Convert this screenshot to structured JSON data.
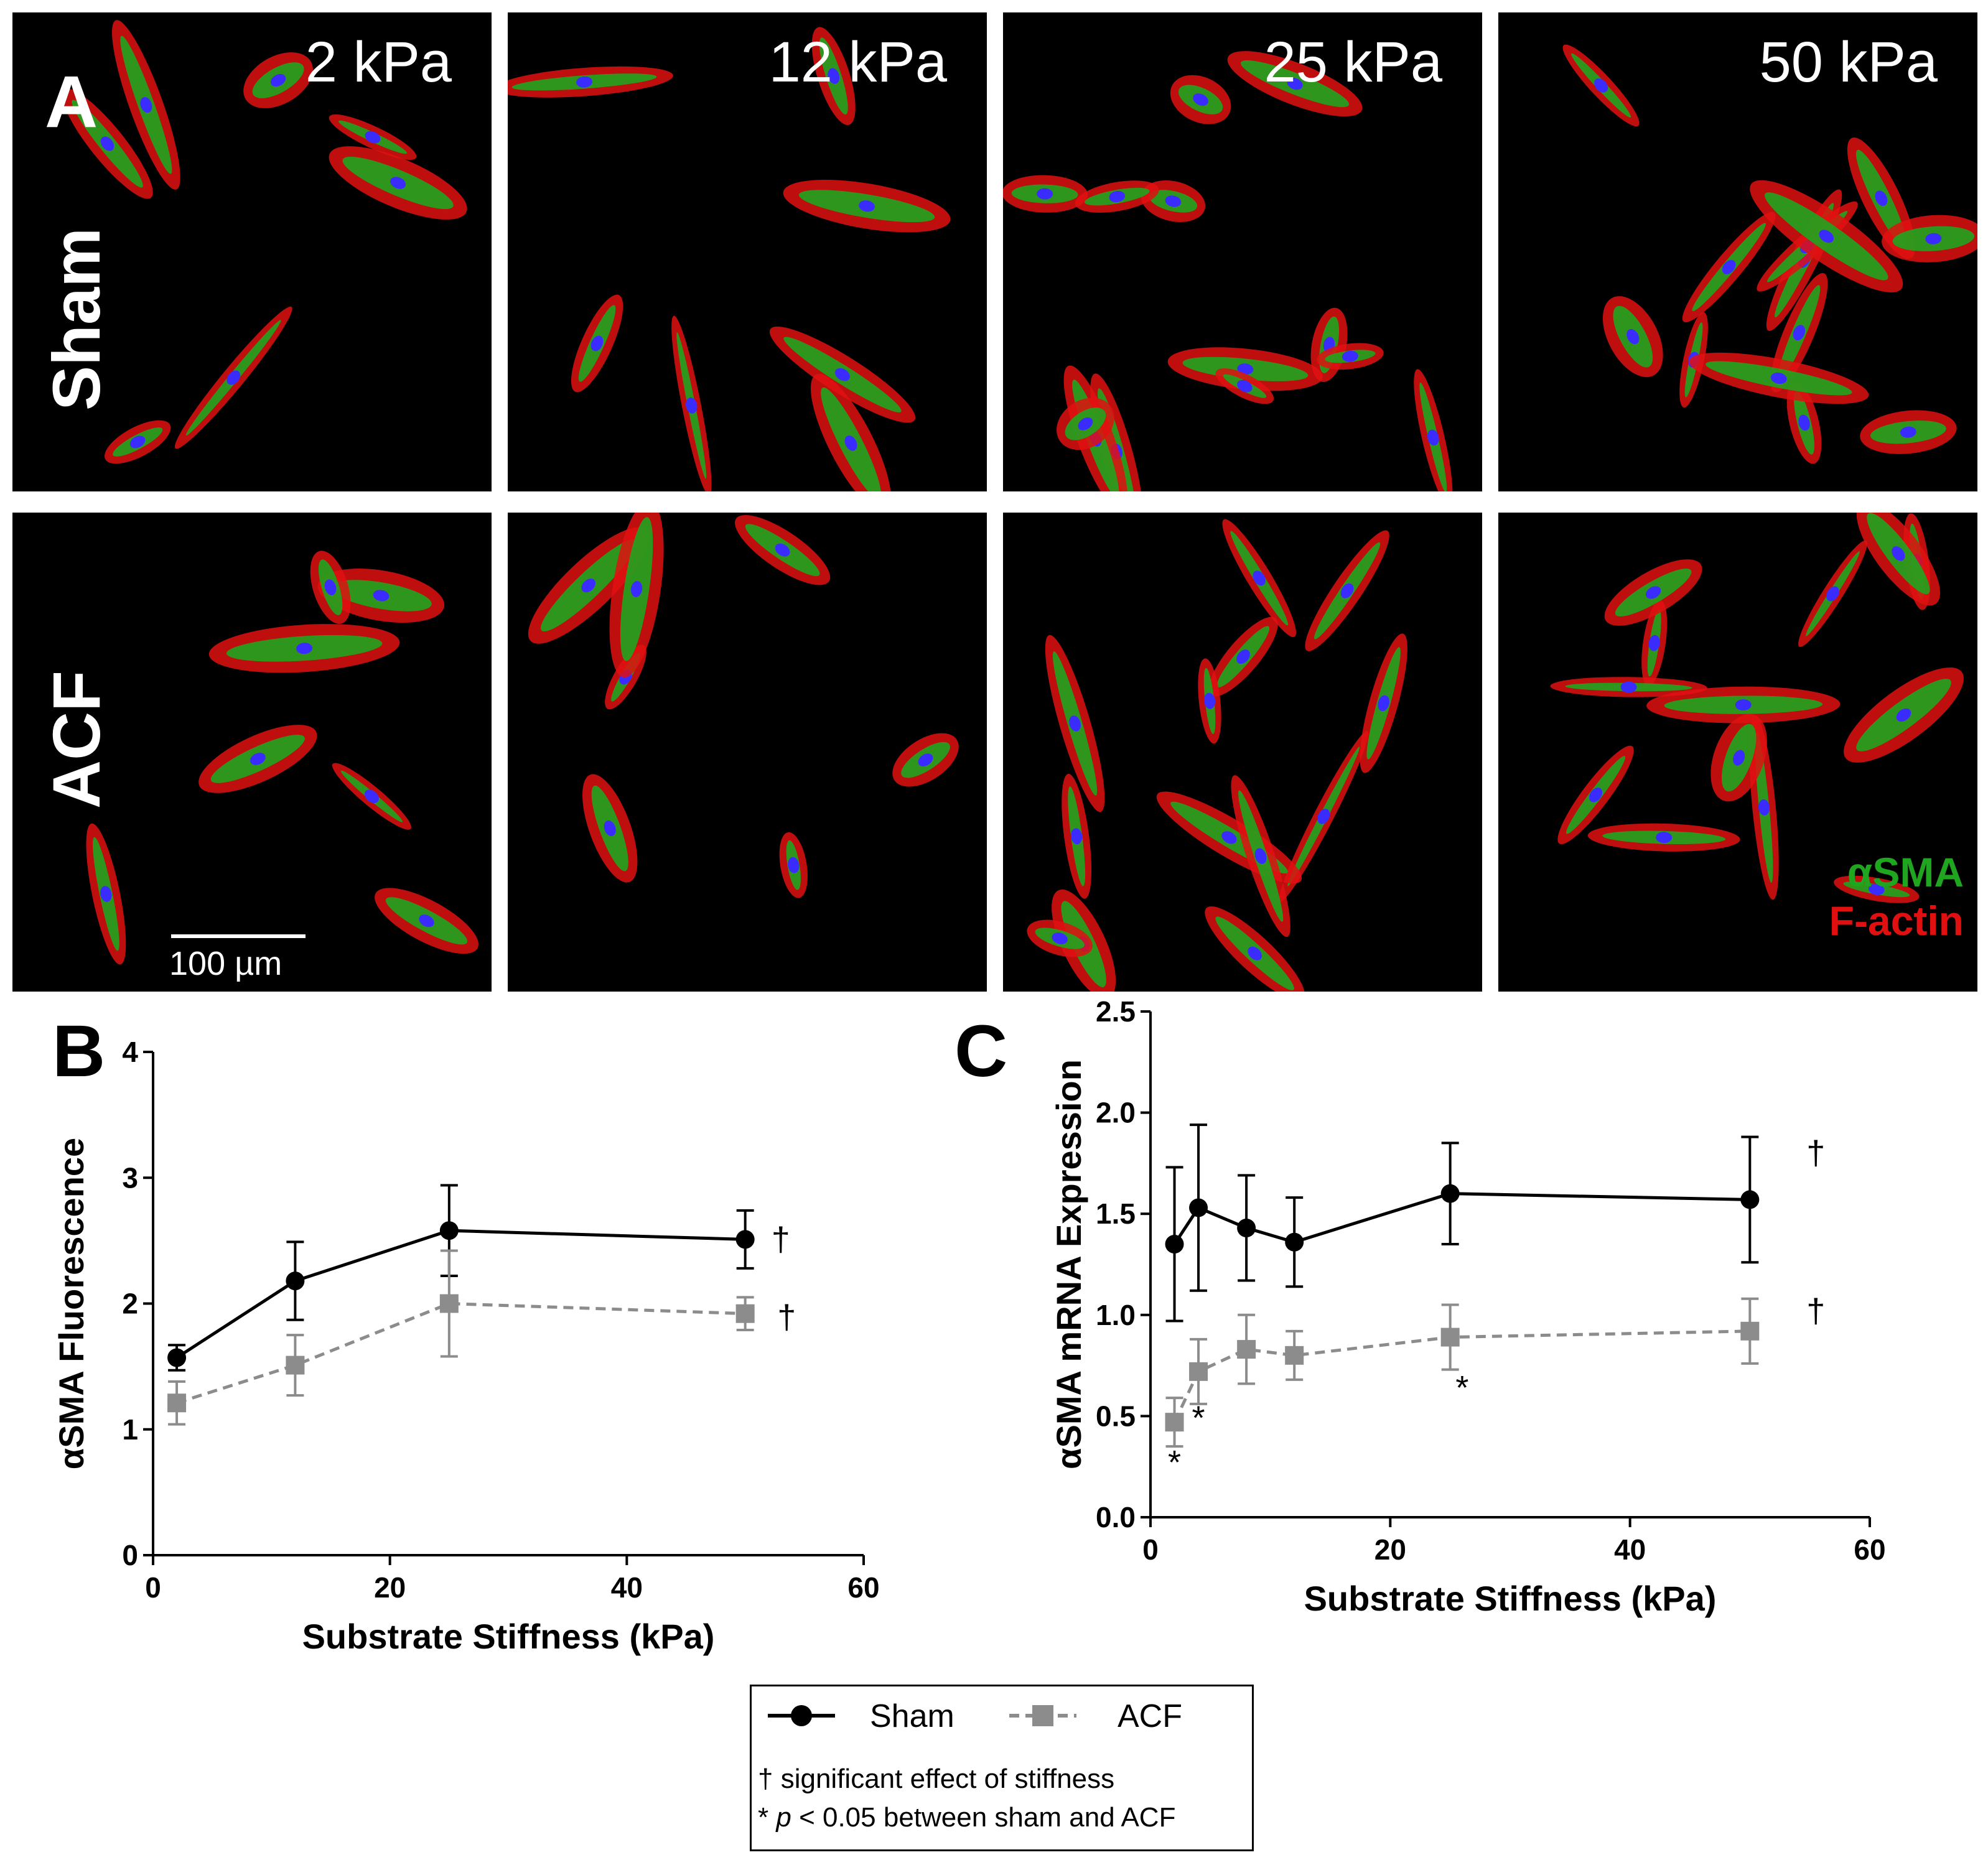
{
  "panel_a": {
    "letter": "A",
    "stiffness_labels": [
      "2 kPa",
      "12 kPa",
      "25 kPa",
      "50 kPa"
    ],
    "rows": [
      "Sham",
      "ACF"
    ],
    "channels": {
      "green": "αSMA",
      "red": "F-actin"
    },
    "scale_bar": "100 µm"
  },
  "panel_b": {
    "letter": "B"
  },
  "panel_c": {
    "letter": "C"
  },
  "colors": {
    "sham": "#000000",
    "acf": "#8c8c8c",
    "green": "#1fa51f",
    "red": "#e01010",
    "blue": "#3a2cff"
  },
  "chart_data": [
    {
      "type": "line",
      "panel": "B",
      "xlabel": "Substrate Stiffness (kPa)",
      "ylabel": "αSMA Fluorescence",
      "xlim": [
        0,
        60
      ],
      "ylim": [
        0,
        4
      ],
      "xticks": [
        0,
        20,
        40,
        60
      ],
      "yticks": [
        0,
        1,
        2,
        3,
        4
      ],
      "series": [
        {
          "name": "Sham",
          "x": [
            2,
            12,
            25,
            50
          ],
          "y": [
            1.57,
            2.18,
            2.58,
            2.51
          ],
          "err": [
            0.1,
            0.31,
            0.36,
            0.23
          ],
          "marker": "circle",
          "dash": "solid"
        },
        {
          "name": "ACF",
          "x": [
            2,
            12,
            25,
            50
          ],
          "y": [
            1.21,
            1.51,
            2.0,
            1.92
          ],
          "err": [
            0.17,
            0.24,
            0.42,
            0.13
          ],
          "marker": "square",
          "dash": "dashed"
        }
      ],
      "annotations": [
        {
          "text": "†",
          "x": 53,
          "y": 2.51
        },
        {
          "text": "†",
          "x": 53.5,
          "y": 1.89
        }
      ]
    },
    {
      "type": "line",
      "panel": "C",
      "xlabel": "Substrate Stiffness (kPa)",
      "ylabel": "αSMA mRNA Expression",
      "xlim": [
        0,
        60
      ],
      "ylim": [
        0,
        2.5
      ],
      "xticks": [
        0,
        20,
        40,
        60
      ],
      "yticks": [
        "0.0",
        "0.5",
        "1.0",
        "1.5",
        "2.0",
        "2.5"
      ],
      "series": [
        {
          "name": "Sham",
          "x": [
            2,
            4,
            8,
            12,
            25,
            50
          ],
          "y": [
            1.35,
            1.53,
            1.43,
            1.36,
            1.6,
            1.57
          ],
          "err": [
            0.38,
            0.41,
            0.26,
            0.22,
            0.25,
            0.31
          ],
          "marker": "circle",
          "dash": "solid"
        },
        {
          "name": "ACF",
          "x": [
            2,
            4,
            8,
            12,
            25,
            50
          ],
          "y": [
            0.47,
            0.72,
            0.83,
            0.8,
            0.89,
            0.92
          ],
          "err": [
            0.12,
            0.16,
            0.17,
            0.12,
            0.16,
            0.16
          ],
          "marker": "square",
          "dash": "dashed"
        }
      ],
      "annotations": [
        {
          "text": "†",
          "x": 55.5,
          "y": 1.8
        },
        {
          "text": "†",
          "x": 55.5,
          "y": 1.02
        },
        {
          "text": "*",
          "x": 2,
          "y": 0.27
        },
        {
          "text": "*",
          "x": 4,
          "y": 0.49
        },
        {
          "text": "*",
          "x": 26,
          "y": 0.64
        }
      ]
    }
  ],
  "legend": {
    "sham_label": "Sham",
    "acf_label": "ACF",
    "note_dagger": "† significant effect of stiffness",
    "note_star_prefix": "* ",
    "note_star_p": "p",
    "note_star_rest": " < 0.05 between sham and ACF"
  }
}
